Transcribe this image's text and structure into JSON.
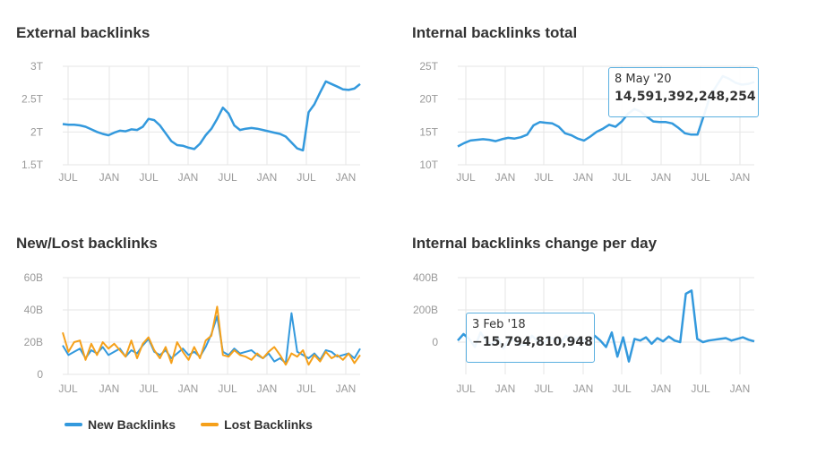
{
  "colors": {
    "blue": "#3399dd",
    "orange": "#f5a01a",
    "grid": "#e6e6e6",
    "axis_text": "#999999"
  },
  "panels": {
    "external": {
      "title": "External backlinks"
    },
    "internal_total": {
      "title": "Internal backlinks total"
    },
    "new_lost": {
      "title": "New/Lost backlinks"
    },
    "internal_change": {
      "title": "Internal backlinks change per day"
    }
  },
  "tooltips": {
    "internal_total": {
      "date": "8 May '20",
      "value": "14,591,392,248,254"
    },
    "internal_change": {
      "date": "3 Feb '18",
      "value": "−15,794,810,948"
    }
  },
  "legend": {
    "new": "New Backlinks",
    "lost": "Lost Backlinks"
  },
  "chart_data": [
    {
      "id": "external",
      "type": "line",
      "title": "External backlinks",
      "x_tick_labels": [
        "JUL",
        "JAN",
        "JUL",
        "JAN",
        "JUL",
        "JAN",
        "JUL",
        "JAN"
      ],
      "y_tick_labels": [
        "1.5T",
        "2T",
        "2.5T",
        "3T"
      ],
      "ylim": [
        1.5,
        3
      ],
      "series": [
        {
          "color": "#3399dd",
          "values": [
            2.12,
            2.11,
            2.11,
            2.1,
            2.08,
            2.04,
            2.0,
            1.97,
            1.95,
            1.99,
            2.02,
            2.01,
            2.04,
            2.03,
            2.08,
            2.2,
            2.18,
            2.1,
            1.98,
            1.86,
            1.8,
            1.79,
            1.76,
            1.74,
            1.82,
            1.95,
            2.05,
            2.2,
            2.37,
            2.28,
            2.1,
            2.03,
            2.05,
            2.06,
            2.05,
            2.03,
            2.01,
            1.99,
            1.97,
            1.93,
            1.84,
            1.75,
            1.72,
            2.3,
            2.42,
            2.6,
            2.77,
            2.73,
            2.69,
            2.65,
            2.64,
            2.66,
            2.73
          ]
        }
      ]
    },
    {
      "id": "internal_total",
      "type": "line",
      "title": "Internal backlinks total",
      "x_tick_labels": [
        "JUL",
        "JAN",
        "JUL",
        "JAN",
        "JUL",
        "JAN",
        "JUL",
        "JAN"
      ],
      "y_tick_labels": [
        "10T",
        "15T",
        "20T",
        "25T"
      ],
      "ylim": [
        10,
        25
      ],
      "series": [
        {
          "color": "#3399dd",
          "values": [
            12.8,
            13.3,
            13.7,
            13.8,
            13.9,
            13.8,
            13.6,
            13.9,
            14.1,
            14.0,
            14.2,
            14.6,
            16.0,
            16.5,
            16.4,
            16.3,
            15.8,
            14.8,
            14.5,
            14.0,
            13.7,
            14.3,
            15.0,
            15.5,
            16.1,
            15.8,
            16.6,
            17.8,
            18.5,
            18.1,
            17.3,
            16.6,
            16.5,
            16.5,
            16.3,
            15.6,
            14.8,
            14.6,
            14.59,
            17.5,
            20.5,
            22.0,
            23.5,
            23.1,
            22.5,
            22.2,
            22.3,
            22.6
          ]
        }
      ]
    },
    {
      "id": "new_lost",
      "type": "line",
      "title": "New/Lost backlinks",
      "x_tick_labels": [
        "JUL",
        "JAN",
        "JUL",
        "JAN",
        "JUL",
        "JAN",
        "JUL",
        "JAN"
      ],
      "y_tick_labels": [
        "0",
        "20B",
        "40B",
        "60B"
      ],
      "ylim": [
        0,
        60
      ],
      "series": [
        {
          "name": "New Backlinks",
          "color": "#3399dd",
          "values": [
            18,
            12,
            14,
            16,
            10,
            15,
            13,
            17,
            12,
            14,
            16,
            11,
            15,
            13,
            18,
            22,
            14,
            12,
            15,
            10,
            13,
            16,
            12,
            14,
            11,
            17,
            25,
            36,
            14,
            12,
            16,
            13,
            14,
            15,
            12,
            10,
            13,
            8,
            10,
            7,
            38,
            14,
            12,
            10,
            13,
            9,
            15,
            14,
            11,
            12,
            13,
            10,
            16
          ]
        },
        {
          "name": "Lost Backlinks",
          "color": "#f5a01a",
          "values": [
            26,
            14,
            20,
            21,
            9,
            19,
            12,
            20,
            16,
            19,
            15,
            11,
            21,
            10,
            19,
            23,
            15,
            10,
            17,
            7,
            20,
            14,
            9,
            17,
            10,
            21,
            24,
            42,
            12,
            11,
            15,
            12,
            11,
            9,
            13,
            10,
            14,
            17,
            12,
            6,
            13,
            11,
            15,
            6,
            12,
            8,
            14,
            10,
            12,
            9,
            13,
            7,
            12
          ]
        }
      ]
    },
    {
      "id": "internal_change",
      "type": "line",
      "title": "Internal backlinks change per day",
      "x_tick_labels": [
        "JUL",
        "JAN",
        "JUL",
        "JAN",
        "JUL",
        "JAN",
        "JUL",
        "JAN"
      ],
      "y_tick_labels": [
        "0",
        "200B",
        "400B"
      ],
      "ylim": [
        -200,
        400
      ],
      "series": [
        {
          "color": "#3399dd",
          "values": [
            10,
            50,
            20,
            -30,
            60,
            5,
            -15,
            30,
            -40,
            20,
            10,
            -20,
            -15.8,
            40,
            5,
            -10,
            30,
            20,
            -5,
            40,
            10,
            25,
            15,
            -20,
            40,
            10,
            -30,
            60,
            -90,
            30,
            -120,
            20,
            10,
            30,
            -10,
            25,
            5,
            35,
            10,
            0,
            300,
            320,
            20,
            0,
            10,
            15,
            20,
            25,
            10,
            20,
            30,
            15,
            5
          ]
        }
      ]
    }
  ]
}
